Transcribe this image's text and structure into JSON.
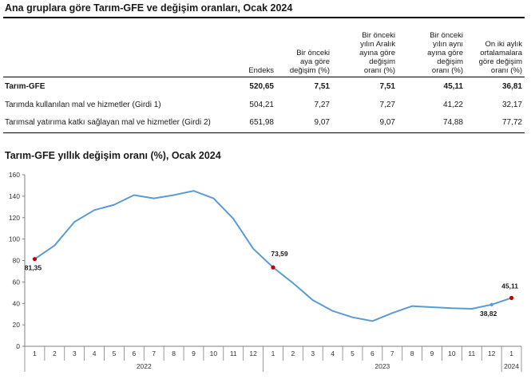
{
  "table": {
    "title": "Ana gruplara göre Tarım-GFE ve değişim oranları, Ocak 2024",
    "columns": [
      [
        "Endeks"
      ],
      [
        "Bir önceki",
        "aya göre",
        "değişim (%)"
      ],
      [
        "Bir önceki",
        "yılın Aralık",
        "ayına göre",
        "değişim",
        "oranı (%)"
      ],
      [
        "Bir önceki",
        "yılın aynı",
        "ayına göre",
        "değişim",
        "oranı (%)"
      ],
      [
        "On iki aylık",
        "ortalamalara",
        "göre değişim",
        "oranı (%)"
      ]
    ],
    "rows": [
      {
        "label": "Tarım-GFE",
        "values": [
          "520,65",
          "7,51",
          "7,51",
          "45,11",
          "36,81"
        ]
      },
      {
        "label": "Tarımda kullanılan mal ve hizmetler (Girdi 1)",
        "values": [
          "504,21",
          "7,27",
          "7,27",
          "41,22",
          "32,17"
        ]
      },
      {
        "label": "Tarımsal  yatırıma katkı sağlayan mal ve hizmetler (Girdi 2)",
        "values": [
          "651,98",
          "9,07",
          "9,07",
          "74,88",
          "77,72"
        ]
      }
    ]
  },
  "colors": {
    "line": "#5b9bd5",
    "marker": "#c00000",
    "axis": "#808080",
    "grid": "#d9d9d9"
  },
  "chart_data": {
    "type": "line",
    "title": "Tarım-GFE yıllık değişim oranı (%), Ocak 2024",
    "xlabel": "",
    "ylabel": "",
    "ylim": [
      0,
      160
    ],
    "yticks": [
      "0",
      "20",
      "40",
      "60",
      "80",
      "100",
      "120",
      "140",
      "160"
    ],
    "months": [
      "1",
      "2",
      "3",
      "4",
      "5",
      "6",
      "7",
      "8",
      "9",
      "10",
      "11",
      "12",
      "1",
      "2",
      "3",
      "4",
      "5",
      "6",
      "7",
      "8",
      "9",
      "10",
      "11",
      "12",
      "1"
    ],
    "year_groups": [
      {
        "label": "2022",
        "start": 0,
        "end": 11
      },
      {
        "label": "2023",
        "start": 12,
        "end": 23
      },
      {
        "label": "2024",
        "start": 24,
        "end": 24
      }
    ],
    "series": [
      {
        "name": "Tarım-GFE",
        "values": [
          81.35,
          94,
          116,
          127,
          132,
          141,
          138,
          141,
          145,
          138,
          119,
          91,
          73.59,
          59,
          43,
          33,
          27,
          23.5,
          31,
          37.5,
          36.5,
          35.5,
          35,
          38.82,
          45.11
        ]
      }
    ],
    "annotations": [
      {
        "index": 0,
        "label": "81,35",
        "marker": true
      },
      {
        "index": 12,
        "label": "73,59",
        "marker": true
      },
      {
        "index": 23,
        "label": "38,82",
        "marker": false
      },
      {
        "index": 24,
        "label": "45,11",
        "marker": true
      }
    ]
  }
}
